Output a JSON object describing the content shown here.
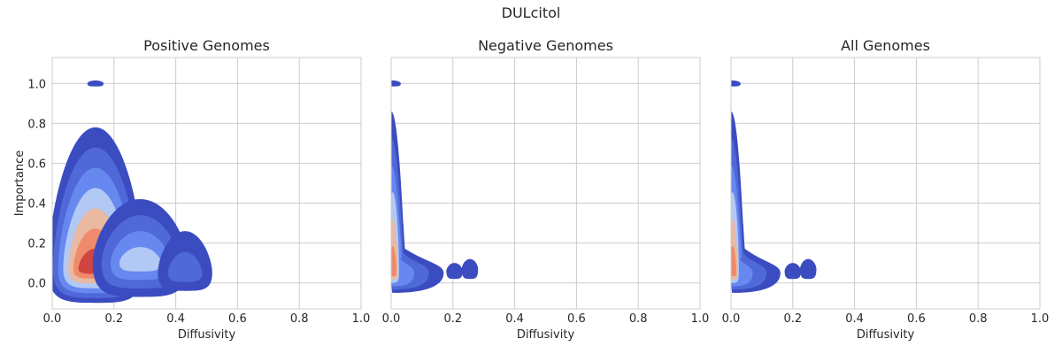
{
  "figure": {
    "suptitle": "DULcitol"
  },
  "chart_data": [
    {
      "type": "contour",
      "title": "Positive Genomes",
      "xlabel": "Diffusivity",
      "ylabel": "Importance",
      "xlim": [
        0.0,
        1.0
      ],
      "ylim": [
        -0.13,
        1.13
      ],
      "xticks": [
        "0.0",
        "0.2",
        "0.4",
        "0.6",
        "0.8",
        "1.0"
      ],
      "yticks": [
        "0.0",
        "0.2",
        "0.4",
        "0.6",
        "0.8",
        "1.0"
      ],
      "grid": true,
      "blobs": [
        {
          "x": 0.14,
          "y": 1.0,
          "sx": 0.012,
          "ylo": 0.985,
          "yhi": 1.015,
          "levels": 1
        },
        {
          "x": 0.14,
          "y": 0.07,
          "sx": 0.07,
          "ylo": -0.1,
          "yhi": 0.78,
          "levels": 7
        },
        {
          "x": 0.285,
          "y": 0.1,
          "sx": 0.07,
          "ylo": -0.07,
          "yhi": 0.42,
          "levels": 4
        },
        {
          "x": 0.43,
          "y": 0.05,
          "sx": 0.04,
          "ylo": -0.04,
          "yhi": 0.26,
          "levels": 2
        }
      ]
    },
    {
      "type": "contour",
      "title": "Negative Genomes",
      "xlabel": "Diffusivity",
      "ylabel": "",
      "xlim": [
        0.0,
        1.0
      ],
      "ylim": [
        -0.13,
        1.13
      ],
      "xticks": [
        "0.0",
        "0.2",
        "0.4",
        "0.6",
        "0.8",
        "1.0"
      ],
      "yticks": [],
      "grid": true,
      "blobs": [
        {
          "x": 0.005,
          "y": 1.0,
          "sx": 0.012,
          "ylo": 0.985,
          "yhi": 1.015,
          "levels": 1
        },
        {
          "x": 0.005,
          "y": 0.05,
          "sx": 0.015,
          "ylo": -0.05,
          "yhi": 0.86,
          "levels": 6,
          "tail_to": 0.17
        },
        {
          "x": 0.205,
          "y": 0.06,
          "sx": 0.012,
          "ylo": 0.02,
          "yhi": 0.1,
          "levels": 1
        },
        {
          "x": 0.255,
          "y": 0.07,
          "sx": 0.012,
          "ylo": 0.02,
          "yhi": 0.12,
          "levels": 1
        }
      ]
    },
    {
      "type": "contour",
      "title": "All Genomes",
      "xlabel": "Diffusivity",
      "ylabel": "",
      "xlim": [
        0.0,
        1.0
      ],
      "ylim": [
        -0.13,
        1.13
      ],
      "xticks": [
        "0.0",
        "0.2",
        "0.4",
        "0.6",
        "0.8",
        "1.0"
      ],
      "yticks": [],
      "grid": true,
      "blobs": [
        {
          "x": 0.005,
          "y": 1.0,
          "sx": 0.012,
          "ylo": 0.985,
          "yhi": 1.015,
          "levels": 1
        },
        {
          "x": 0.005,
          "y": 0.05,
          "sx": 0.015,
          "ylo": -0.05,
          "yhi": 0.86,
          "levels": 6,
          "tail_to": 0.16
        },
        {
          "x": 0.2,
          "y": 0.06,
          "sx": 0.012,
          "ylo": 0.02,
          "yhi": 0.1,
          "levels": 1
        },
        {
          "x": 0.25,
          "y": 0.07,
          "sx": 0.012,
          "ylo": 0.02,
          "yhi": 0.12,
          "levels": 1
        }
      ]
    }
  ],
  "colors": {
    "levels": [
      "#3b4cc0",
      "#4f69d9",
      "#6788ee",
      "#84a7fc",
      "#b3c9f5",
      "#e9b9a2",
      "#f08a6c",
      "#d0453d"
    ],
    "grid": "#cccccc",
    "spine": "#cccccc",
    "text": "#262626"
  }
}
